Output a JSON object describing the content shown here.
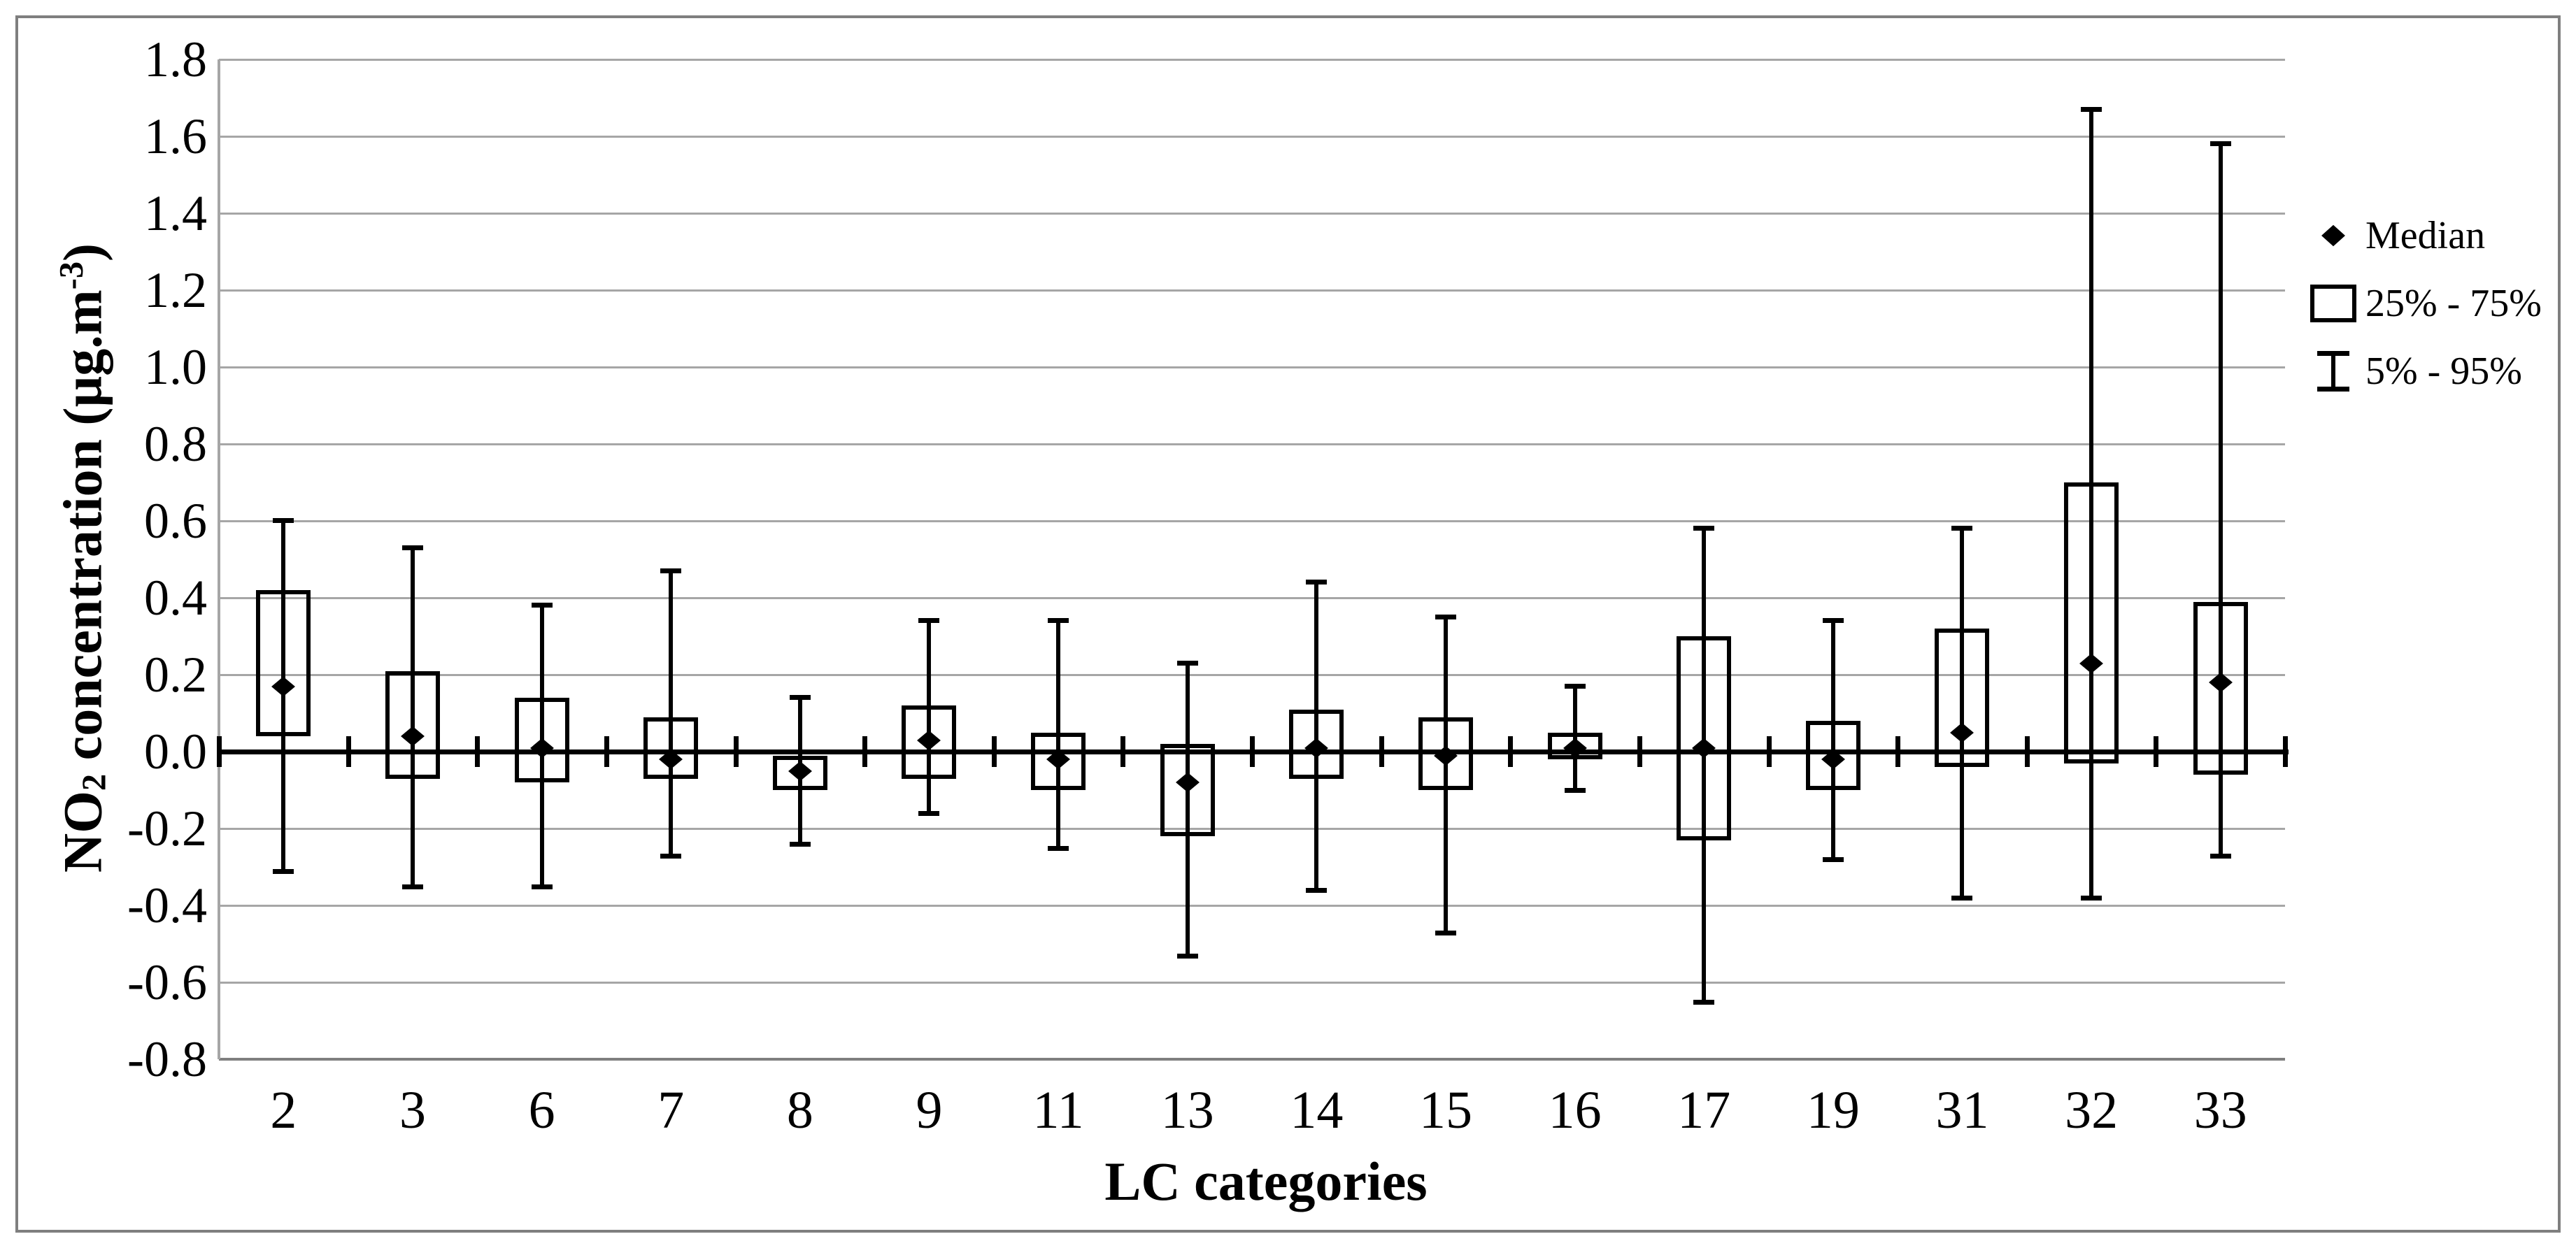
{
  "colors": {
    "background": "#ffffff",
    "frame": "#7f7f7f",
    "grid": "#a6a6a6",
    "ink": "#000000"
  },
  "chart_data": {
    "type": "box",
    "title": "",
    "xlabel": "LC categories",
    "ylabel_plain": "NO2 concentration (µg.m-3)",
    "ylabel_parts": [
      {
        "text": "NO",
        "style": ""
      },
      {
        "text": "2",
        "style": "sub"
      },
      {
        "text": " concentration (µg.m",
        "style": ""
      },
      {
        "text": "-3",
        "style": "sup"
      },
      {
        "text": ")",
        "style": ""
      }
    ],
    "y_axis": {
      "min": -0.8,
      "max": 1.8,
      "step": 0.2,
      "tick_labels": [
        "1.8",
        "1.6",
        "1.4",
        "1.2",
        "1.0",
        "0.8",
        "0.6",
        "0.4",
        "0.2",
        "0.0",
        "-0.2",
        "-0.4",
        "-0.6",
        "-0.8"
      ],
      "grid": true
    },
    "categories": [
      "2",
      "3",
      "6",
      "7",
      "8",
      "9",
      "11",
      "13",
      "14",
      "15",
      "16",
      "17",
      "19",
      "31",
      "32",
      "33"
    ],
    "boxes": [
      {
        "category": "2",
        "p5": -0.31,
        "q1": 0.04,
        "median": 0.17,
        "q3": 0.42,
        "p95": 0.6
      },
      {
        "category": "3",
        "p5": -0.35,
        "q1": -0.07,
        "median": 0.04,
        "q3": 0.21,
        "p95": 0.53
      },
      {
        "category": "6",
        "p5": -0.35,
        "q1": -0.08,
        "median": 0.01,
        "q3": 0.14,
        "p95": 0.38
      },
      {
        "category": "7",
        "p5": -0.27,
        "q1": -0.07,
        "median": -0.02,
        "q3": 0.09,
        "p95": 0.47
      },
      {
        "category": "8",
        "p5": -0.24,
        "q1": -0.1,
        "median": -0.05,
        "q3": -0.01,
        "p95": 0.14
      },
      {
        "category": "9",
        "p5": -0.16,
        "q1": -0.07,
        "median": 0.03,
        "q3": 0.12,
        "p95": 0.34
      },
      {
        "category": "11",
        "p5": -0.25,
        "q1": -0.1,
        "median": -0.02,
        "q3": 0.05,
        "p95": 0.34
      },
      {
        "category": "13",
        "p5": -0.53,
        "q1": -0.22,
        "median": -0.08,
        "q3": 0.02,
        "p95": 0.23
      },
      {
        "category": "14",
        "p5": -0.36,
        "q1": -0.07,
        "median": 0.01,
        "q3": 0.11,
        "p95": 0.44
      },
      {
        "category": "15",
        "p5": -0.47,
        "q1": -0.1,
        "median": -0.01,
        "q3": 0.09,
        "p95": 0.35
      },
      {
        "category": "16",
        "p5": -0.1,
        "q1": -0.02,
        "median": 0.01,
        "q3": 0.05,
        "p95": 0.17
      },
      {
        "category": "17",
        "p5": -0.65,
        "q1": -0.23,
        "median": 0.01,
        "q3": 0.3,
        "p95": 0.58
      },
      {
        "category": "19",
        "p5": -0.28,
        "q1": -0.1,
        "median": -0.02,
        "q3": 0.08,
        "p95": 0.34
      },
      {
        "category": "31",
        "p5": -0.38,
        "q1": -0.04,
        "median": 0.05,
        "q3": 0.32,
        "p95": 0.58
      },
      {
        "category": "32",
        "p5": -0.38,
        "q1": -0.03,
        "median": 0.23,
        "q3": 0.7,
        "p95": 1.67
      },
      {
        "category": "33",
        "p5": -0.27,
        "q1": -0.06,
        "median": 0.18,
        "q3": 0.39,
        "p95": 1.58
      }
    ],
    "legend": [
      {
        "label": "Median",
        "marker": "diamond"
      },
      {
        "label": "25% - 75%",
        "marker": "box"
      },
      {
        "label": "5% - 95%",
        "marker": "whisker"
      }
    ],
    "legend_position": "right"
  }
}
